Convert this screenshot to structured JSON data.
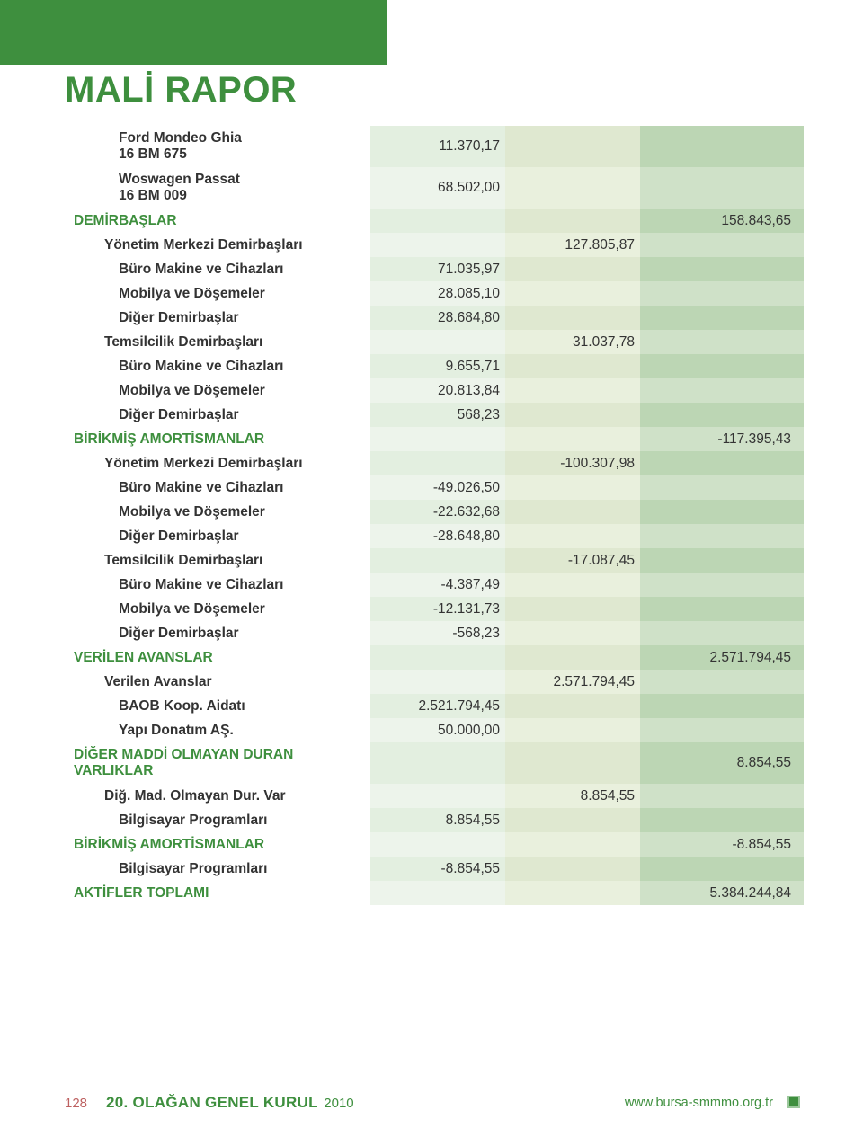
{
  "pageTitle": "MALİ RAPOR",
  "colors": {
    "brand": "#3e8f3e",
    "alt1_a": "#e3efe0",
    "alt1_b": "#edf4eb",
    "alt2_a": "#dfe8d0",
    "alt2_b": "#e9f0dd",
    "alt3_a": "#bcd6b4",
    "alt3_b": "#cfe1c8",
    "text": "#333333",
    "pageNumColor": "#bd6060"
  },
  "rows": [
    {
      "label": "Ford Mondeo Ghia\n16 BM 675",
      "indent": 3,
      "c1": "11.370,17",
      "tall": true
    },
    {
      "label": "Woswagen Passat\n16 BM 009",
      "indent": 3,
      "c1": "68.502,00",
      "tall": true
    },
    {
      "label": "DEMİRBAŞLAR",
      "indent": 0,
      "major": true,
      "c3": "158.843,65"
    },
    {
      "label": "Yönetim Merkezi Demirbaşları",
      "indent": 2,
      "c2": "127.805,87"
    },
    {
      "label": "Büro Makine ve Cihazları",
      "indent": 3,
      "c1": "71.035,97"
    },
    {
      "label": "Mobilya ve Döşemeler",
      "indent": 3,
      "c1": "28.085,10"
    },
    {
      "label": "Diğer Demirbaşlar",
      "indent": 3,
      "c1": "28.684,80"
    },
    {
      "label": "Temsilcilik Demirbaşları",
      "indent": 2,
      "c2": "31.037,78"
    },
    {
      "label": "Büro Makine ve Cihazları",
      "indent": 3,
      "c1": "9.655,71"
    },
    {
      "label": "Mobilya ve Döşemeler",
      "indent": 3,
      "c1": "20.813,84"
    },
    {
      "label": "Diğer Demirbaşlar",
      "indent": 3,
      "c1": "568,23"
    },
    {
      "label": "BİRİKMİŞ AMORTİSMANLAR",
      "indent": 0,
      "major": true,
      "c3": "-117.395,43"
    },
    {
      "label": "Yönetim Merkezi Demirbaşları",
      "indent": 2,
      "c2": "-100.307,98"
    },
    {
      "label": "Büro Makine ve Cihazları",
      "indent": 3,
      "c1": "-49.026,50"
    },
    {
      "label": "Mobilya ve Döşemeler",
      "indent": 3,
      "c1": "-22.632,68"
    },
    {
      "label": "Diğer Demirbaşlar",
      "indent": 3,
      "c1": "-28.648,80"
    },
    {
      "label": "Temsilcilik Demirbaşları",
      "indent": 2,
      "c2": "-17.087,45"
    },
    {
      "label": "Büro Makine ve Cihazları",
      "indent": 3,
      "c1": "-4.387,49"
    },
    {
      "label": "Mobilya ve Döşemeler",
      "indent": 3,
      "c1": "-12.131,73"
    },
    {
      "label": "Diğer Demirbaşlar",
      "indent": 3,
      "c1": "-568,23"
    },
    {
      "label": "VERİLEN AVANSLAR",
      "indent": 0,
      "major": true,
      "c3": "2.571.794,45"
    },
    {
      "label": "Verilen Avanslar",
      "indent": 2,
      "c2": "2.571.794,45"
    },
    {
      "label": "BAOB Koop. Aidatı",
      "indent": 3,
      "c1": "2.521.794,45"
    },
    {
      "label": "Yapı Donatım AŞ.",
      "indent": 3,
      "c1": "50.000,00"
    },
    {
      "label": "DİĞER MADDİ OLMAYAN DURAN VARLIKLAR",
      "indent": 0,
      "major": true,
      "c3": "8.854,55",
      "tall": true
    },
    {
      "label": "Diğ. Mad. Olmayan Dur. Var",
      "indent": 2,
      "c2": "8.854,55"
    },
    {
      "label": "Bilgisayar Programları",
      "indent": 3,
      "c1": "8.854,55"
    },
    {
      "label": "BİRİKMİŞ AMORTİSMANLAR",
      "indent": 0,
      "major": true,
      "c3": "-8.854,55"
    },
    {
      "label": "Bilgisayar Programları",
      "indent": 3,
      "c1": "-8.854,55"
    },
    {
      "label": "AKTİFLER TOPLAMI",
      "indent": 0,
      "major": true,
      "c3": "5.384.244,84"
    }
  ],
  "footer": {
    "pageNumber": "128",
    "titleMain": "20. OLAĞAN GENEL KURUL",
    "titleYear": "2010",
    "url": "www.bursa-smmmo.org.tr"
  }
}
